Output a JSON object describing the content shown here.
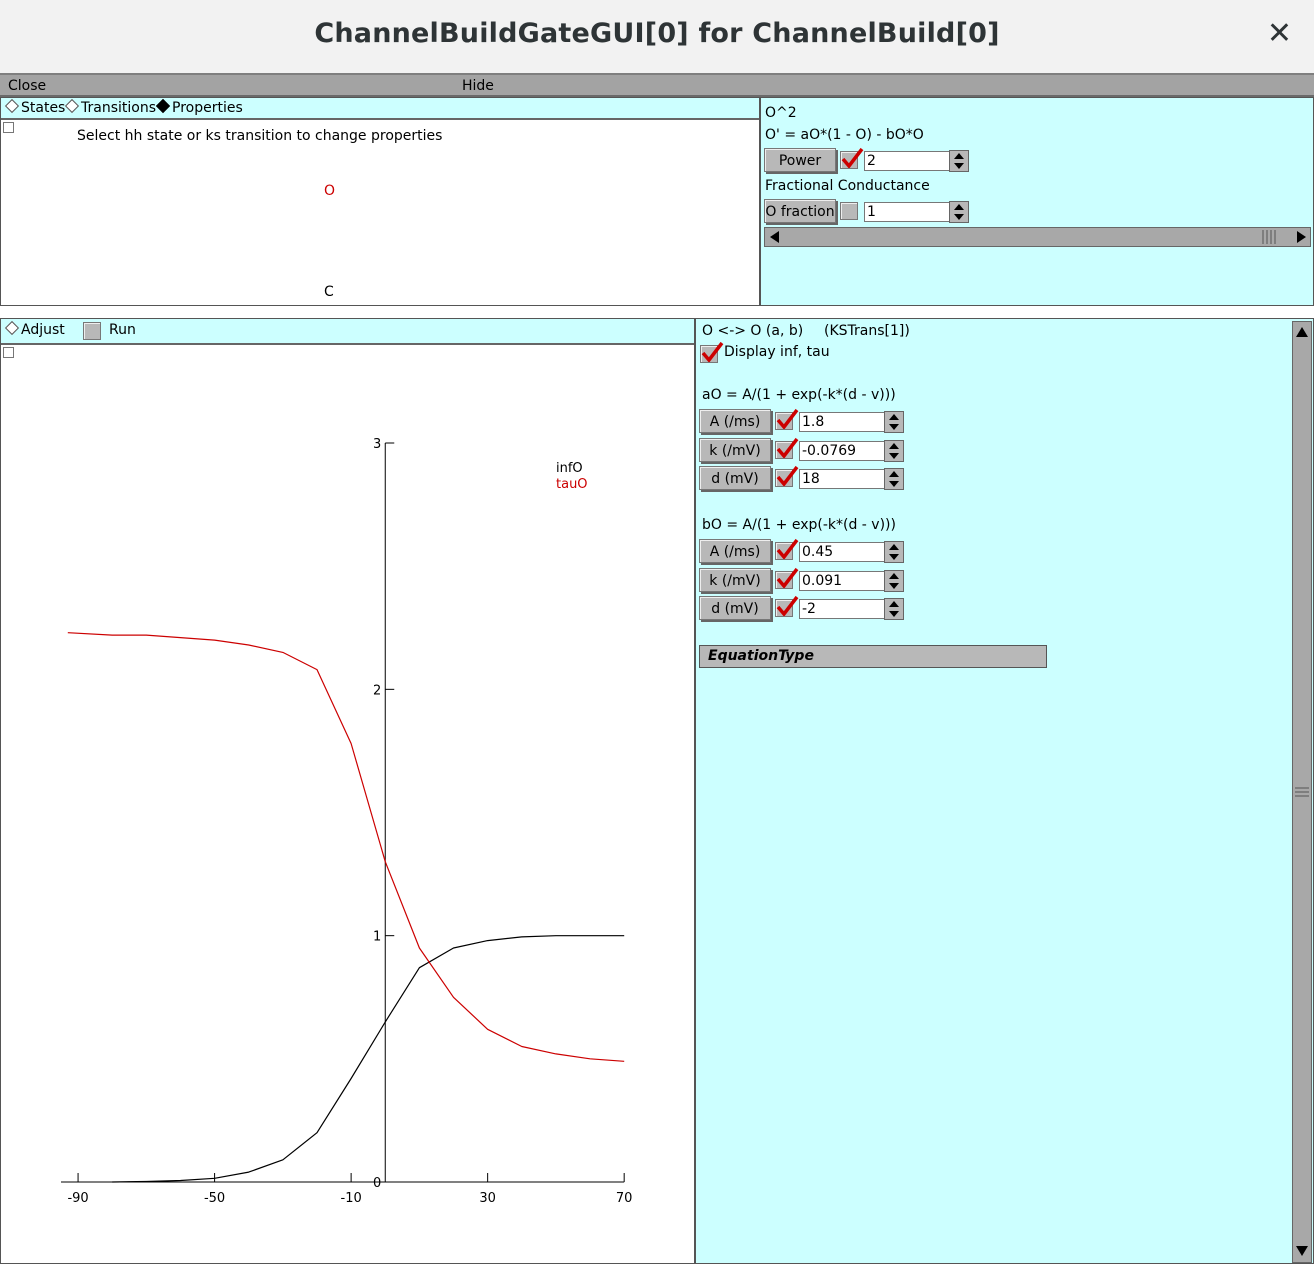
{
  "window": {
    "title": "ChannelBuildGateGUI[0] for ChannelBuild[0]",
    "close_glyph": "✕"
  },
  "menubar": {
    "close": "Close",
    "hide": "Hide"
  },
  "states_panel": {
    "tabs": [
      "States",
      "Transitions",
      "Properties"
    ],
    "selected_tab": "Properties",
    "hint": "Select hh state or ks transition to change properties",
    "state_open": "O",
    "state_closed": "C"
  },
  "props_panel": {
    "expr": "O^2",
    "equation": "O' = aO*(1 - O) - bO*O",
    "power_label": "Power",
    "power_value": "2",
    "power_checked": true,
    "frac_heading": "Fractional Conductance",
    "frac_label": "O fraction",
    "frac_value": "1",
    "frac_checked": false
  },
  "graph_panel": {
    "adjust_label": "Adjust",
    "run_label": "Run"
  },
  "chart_data": {
    "type": "line",
    "xlim": [
      -95,
      72
    ],
    "ylim": [
      0,
      3
    ],
    "xticks": [
      -90,
      -50,
      -10,
      30,
      70
    ],
    "yticks": [
      0,
      1,
      2,
      3
    ],
    "legend": [
      "infO",
      "tauO"
    ],
    "colors": {
      "infO": "#000000",
      "tauO": "#cc0000"
    },
    "series": [
      {
        "name": "infO",
        "x": [
          -80,
          -70,
          -60,
          -50,
          -40,
          -30,
          -20,
          -10,
          0,
          10,
          20,
          30,
          40,
          50,
          60,
          70
        ],
        "y": [
          0.0,
          0.002,
          0.006,
          0.015,
          0.04,
          0.09,
          0.2,
          0.42,
          0.65,
          0.87,
          0.95,
          0.98,
          0.995,
          1.0,
          1.0,
          1.0
        ]
      },
      {
        "name": "tauO",
        "x": [
          -93,
          -80,
          -70,
          -60,
          -50,
          -40,
          -30,
          -20,
          -10,
          0,
          10,
          20,
          30,
          40,
          50,
          60,
          70
        ],
        "y": [
          2.23,
          2.22,
          2.22,
          2.21,
          2.2,
          2.18,
          2.15,
          2.08,
          1.78,
          1.3,
          0.95,
          0.75,
          0.62,
          0.55,
          0.52,
          0.5,
          0.49
        ]
      }
    ]
  },
  "trans_panel": {
    "header": "O <-> O (a, b)",
    "header_id": "(KSTrans[1])",
    "display_label": "Display inf, tau",
    "a_eq": "aO = A/(1 + exp(-k*(d - v)))",
    "a_rows": [
      {
        "label": "A (/ms)",
        "value": "1.8"
      },
      {
        "label": "k (/mV)",
        "value": "-0.0769"
      },
      {
        "label": "d (mV)",
        "value": "18"
      }
    ],
    "b_eq": "bO = A/(1 + exp(-k*(d - v)))",
    "b_rows": [
      {
        "label": "A (/ms)",
        "value": "0.45"
      },
      {
        "label": "k (/mV)",
        "value": "0.091"
      },
      {
        "label": "d (mV)",
        "value": "-2"
      }
    ],
    "equation_type": "EquationType"
  }
}
